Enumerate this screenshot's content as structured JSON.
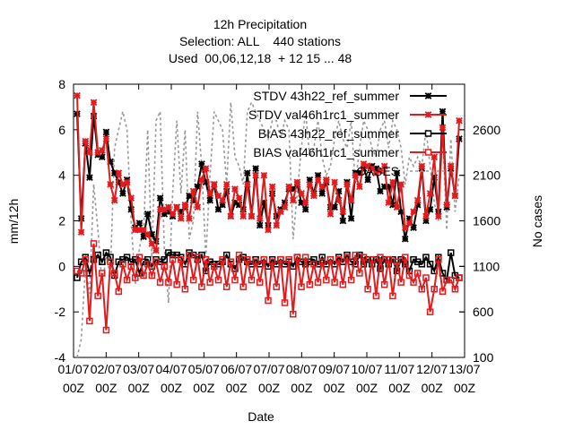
{
  "chart_data": {
    "type": "line",
    "title_lines": [
      "12h Precipitation",
      "Selection: ALL    440 stations",
      "Used  00,06,12,18  + 12 15 ... 48"
    ],
    "xlabel": "Date",
    "ylabel": "mm/12h",
    "y2label": "No cases",
    "ylim": [
      -4,
      8
    ],
    "y2lim": [
      100,
      3100
    ],
    "yticks": [
      "-4",
      "-2",
      "0",
      "2",
      "4",
      "6",
      "8"
    ],
    "y2ticks": [
      "100",
      "600",
      "1100",
      "1600",
      "2100",
      "2600"
    ],
    "xticks": [
      [
        "01/07",
        "00Z"
      ],
      [
        "02/07",
        "00Z"
      ],
      [
        "03/07",
        "00Z"
      ],
      [
        "04/07",
        "00Z"
      ],
      [
        "05/07",
        "00Z"
      ],
      [
        "06/07",
        "00Z"
      ],
      [
        "07/07",
        "00Z"
      ],
      [
        "08/07",
        "00Z"
      ],
      [
        "09/07",
        "00Z"
      ],
      [
        "10/07",
        "00Z"
      ],
      [
        "11/07",
        "00Z"
      ],
      [
        "12/07",
        "00Z"
      ],
      [
        "13/07",
        "00Z"
      ]
    ],
    "legend_position": "top-right",
    "series": [
      {
        "name": "STDV 43h22_ref_summer",
        "color": "#000000",
        "marker": "star",
        "values": [
          6.7,
          2.1,
          5.4,
          3.9,
          6.6,
          4.9,
          4.8,
          5.9,
          4.6,
          4.1,
          3.7,
          3.2,
          3.8,
          2.5,
          1.7,
          1.9,
          1.3,
          2.3,
          1.4,
          1.1,
          3.0,
          2.3,
          2.4,
          2.2,
          2.6,
          2.4,
          2.6,
          3.1,
          2.9,
          3.5,
          4.5,
          3.7,
          2.9,
          3.6,
          2.5,
          2.7,
          3.3,
          2.2,
          2.8,
          2.7,
          2.5,
          4.1,
          2.2,
          4.3,
          1.8,
          2.8,
          1.8,
          3.2,
          2.2,
          2.5,
          2.8,
          3.4,
          3.4,
          3.6,
          2.8,
          2.5,
          3.8,
          3.2,
          4.0,
          3.2,
          3.7,
          2.6,
          2.6,
          3.3,
          2.0,
          3.7,
          2.1,
          4.1,
          4.1,
          4.3,
          3.8,
          4.4,
          4.3,
          3.3,
          3.5,
          3.5,
          2.7,
          4.1,
          2.4,
          1.2,
          2.1,
          1.7,
          2.7,
          4.3,
          2.0,
          2.5,
          3.9,
          2.4,
          6.8,
          2.6,
          4.3,
          3.1,
          5.6
        ]
      },
      {
        "name": "STDV val46h1rc1_summer",
        "color": "#e41a1c",
        "marker": "star",
        "values": [
          7.5,
          1.5,
          5.5,
          5.0,
          7.2,
          5.0,
          5.1,
          5.6,
          3.6,
          2.9,
          4.1,
          3.6,
          3.7,
          3.0,
          1.6,
          1.6,
          1.6,
          1.4,
          1.0,
          0.7,
          2.5,
          2.5,
          2.6,
          2.3,
          2.6,
          2.1,
          2.7,
          2.1,
          3.3,
          2.6,
          3.8,
          4.3,
          3.2,
          3.6,
          3.1,
          2.9,
          3.6,
          2.2,
          3.4,
          3.0,
          2.2,
          3.6,
          2.2,
          4.0,
          2.1,
          4.0,
          1.6,
          3.5,
          1.8,
          2.4,
          2.6,
          3.5,
          2.9,
          3.7,
          3.2,
          2.8,
          3.6,
          3.1,
          3.8,
          3.5,
          3.8,
          2.3,
          3.7,
          2.9,
          2.4,
          3.6,
          2.9,
          4.0,
          3.5,
          4.5,
          4.4,
          4.3,
          4.1,
          4.2,
          4.4,
          2.8,
          3.7,
          2.6,
          3.6,
          1.7,
          1.9,
          2.4,
          2.9,
          4.4,
          2.2,
          3.2,
          4.8,
          2.2,
          6.1,
          2.7,
          4.4,
          3.1,
          6.4
        ]
      },
      {
        "name": "BIAS 43h22_ref_summer",
        "color": "#000000",
        "marker": "square",
        "values": [
          -0.5,
          0.2,
          0.4,
          -0.3,
          0.3,
          0.5,
          0.2,
          0.6,
          0.4,
          -0.4,
          0.2,
          0.3,
          0.4,
          0.2,
          0.3,
          -0.3,
          0.2,
          0.3,
          0.0,
          0.3,
          0.2,
          0.3,
          0.6,
          0.5,
          0.5,
          0.4,
          0.1,
          0.6,
          0.5,
          0.3,
          0.5,
          -0.2,
          0.2,
          0.1,
          0.1,
          0.2,
          0.5,
          0.1,
          -0.1,
          0.3,
          0.4,
          0.2,
          0.1,
          0.3,
          0.1,
          0.3,
          0.0,
          0.3,
          0.1,
          0.3,
          0.1,
          0.2,
          0.0,
          0.4,
          0.2,
          0.1,
          0.2,
          0.3,
          0.1,
          0.4,
          0.1,
          0.3,
          0.1,
          0.4,
          0.2,
          0.5,
          0.2,
          0.1,
          0.5,
          0.1,
          0.3,
          0.1,
          0.3,
          -0.1,
          0.3,
          0.1,
          0.3,
          -0.2,
          0.3,
          0.1,
          -0.2,
          0.3,
          0.2,
          0.1,
          0.4,
          0.1,
          -0.2,
          0.4,
          -0.3,
          -0.6,
          0.6,
          -0.4,
          -0.5
        ]
      },
      {
        "name": "BIAS val46h1rc1_summer",
        "color": "#e41a1c",
        "marker": "square",
        "values": [
          -0.2,
          -0.3,
          0.3,
          -2.4,
          1.0,
          -1.3,
          -0.3,
          -2.8,
          0.2,
          -0.3,
          -1.1,
          0.1,
          -0.6,
          0.0,
          -0.5,
          0.4,
          -0.4,
          0.1,
          -0.4,
          0.2,
          -0.7,
          0.0,
          -0.7,
          0.3,
          -0.8,
          0.3,
          -1.0,
          0.5,
          -0.6,
          0.4,
          -0.9,
          0.3,
          -0.7,
          0.0,
          -0.6,
          0.3,
          -0.9,
          0.2,
          -0.6,
          0.5,
          -0.9,
          0.3,
          -0.6,
          0.2,
          -0.7,
          0.3,
          -1.5,
          0.2,
          -0.9,
          0.3,
          -1.6,
          0.3,
          -2.1,
          0.4,
          -0.9,
          0.4,
          -0.8,
          0.1,
          -0.7,
          0.2,
          -0.6,
          0.3,
          -0.7,
          0.3,
          -0.8,
          0.4,
          -0.6,
          0.5,
          -0.3,
          0.4,
          -1.0,
          0.3,
          -1.3,
          0.4,
          -0.8,
          0.3,
          -1.3,
          0.2,
          -0.7,
          0.4,
          -0.4,
          -0.7,
          -0.3,
          -1.0,
          -0.5,
          -2.0,
          -1.0,
          0.3,
          -1.1,
          -0.6,
          -0.6,
          -1.0,
          -0.5
        ]
      },
      {
        "name": "CASES",
        "color": "#999999",
        "marker": "none",
        "axis": "y2",
        "values": [
          100,
          300,
          1100,
          800,
          2000,
          1500,
          900,
          1200,
          1000,
          2400,
          2600,
          2800,
          2600,
          1600,
          900,
          1300,
          1500,
          2600,
          1200,
          2700,
          2800,
          1300,
          700,
          1900,
          2700,
          1900,
          2600,
          1400,
          1600,
          2800,
          2200,
          1200,
          2100,
          2800,
          2700,
          2600,
          2000,
          2900,
          2300,
          2200,
          2000,
          2800,
          2900,
          2800,
          2700,
          2600,
          2500,
          2700,
          2700,
          2500,
          2700,
          2600,
          1400,
          1900,
          2400,
          2800,
          2300,
          2400,
          2700,
          2300,
          2100,
          2200,
          2500,
          2700,
          2500,
          2400,
          2700,
          2000,
          2400,
          2700,
          2600,
          2400,
          2300,
          2600,
          2700,
          2400,
          2700,
          2600,
          2400,
          2000,
          2300,
          2200,
          2300,
          2200,
          2600,
          2200,
          1800,
          1600,
          2600,
          1500,
          2500,
          1700,
          2100
        ]
      }
    ]
  }
}
